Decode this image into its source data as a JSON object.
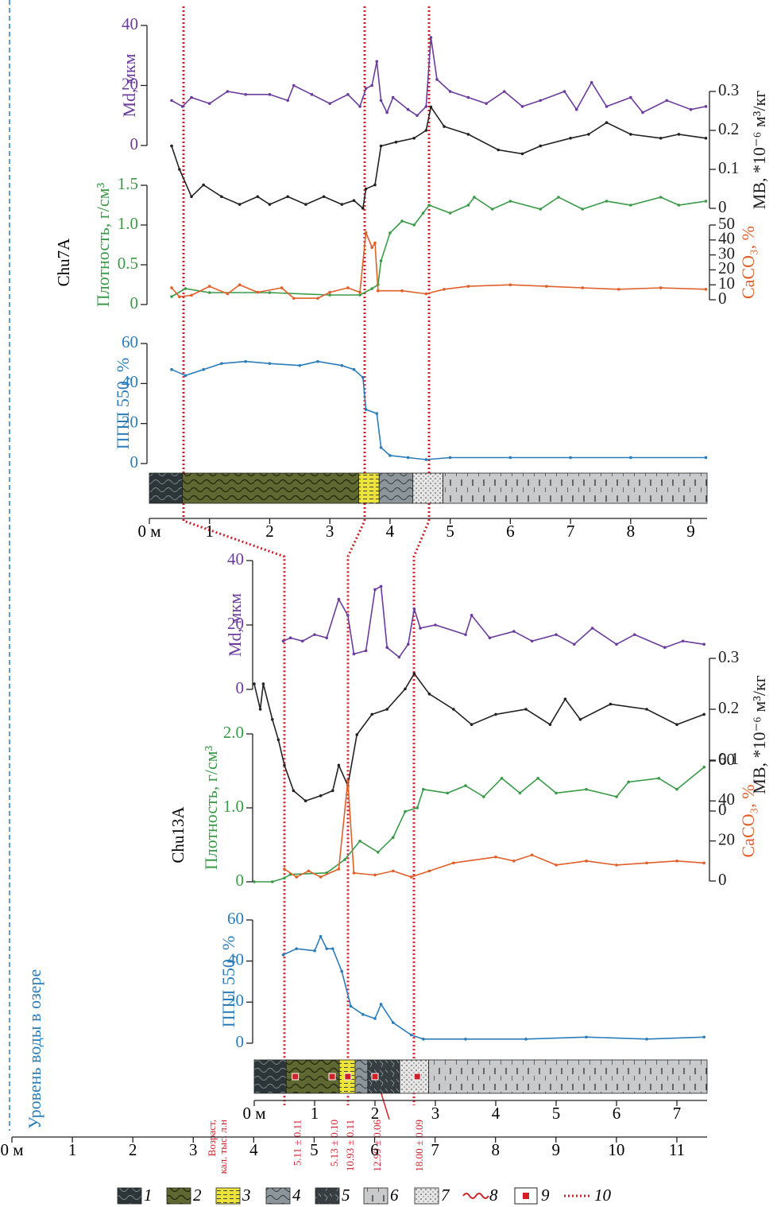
{
  "chart_data": [
    {
      "type": "line",
      "title": "Chu7A",
      "xlim": [
        0,
        9.27
      ],
      "xticks": [
        {
          "value": 0,
          "label": "0 м"
        },
        1,
        2,
        3,
        4,
        5,
        6,
        7,
        8,
        9
      ],
      "lithology": [
        {
          "from": 0,
          "to": 0.55,
          "unit": 1
        },
        {
          "from": 0.55,
          "to": 3.48,
          "unit": 2
        },
        {
          "from": 3.48,
          "to": 3.82,
          "unit": 3
        },
        {
          "from": 3.82,
          "to": 4.38,
          "unit": 4
        },
        {
          "from": 4.38,
          "to": 4.88,
          "unit": 7
        },
        {
          "from": 4.88,
          "to": 9.27,
          "unit": 6
        }
      ],
      "series": [
        {
          "name": "Md, мкм",
          "color": "#6a3c9c",
          "side": "left",
          "ylim": [
            0,
            40
          ],
          "yticks": [
            0,
            20,
            40
          ],
          "x": [
            0.37,
            0.55,
            0.7,
            1.0,
            1.3,
            1.6,
            2.0,
            2.3,
            2.4,
            2.7,
            3.0,
            3.3,
            3.5,
            3.6,
            3.7,
            3.78,
            3.85,
            3.95,
            4.05,
            4.3,
            4.45,
            4.6,
            4.68,
            4.78,
            5.0,
            5.3,
            5.6,
            5.9,
            6.2,
            6.5,
            6.9,
            7.1,
            7.35,
            7.6,
            8.0,
            8.2,
            8.6,
            9.0,
            9.25
          ],
          "values": [
            15,
            13,
            16,
            14,
            18,
            17,
            17,
            15,
            20,
            17,
            14,
            17,
            13,
            19,
            20,
            28,
            15,
            11,
            16,
            12,
            10,
            13,
            36,
            22,
            18,
            16,
            14,
            18,
            13,
            15,
            18,
            12,
            21,
            13,
            16,
            11,
            15,
            12,
            13
          ]
        },
        {
          "name": "MB, *10⁻⁶ м³/кг",
          "color": "#222222",
          "side": "right",
          "ylim": [
            0,
            0.3
          ],
          "yticks": [
            0,
            0.1,
            0.2,
            0.3
          ],
          "x": [
            0.37,
            0.5,
            0.7,
            0.9,
            1.2,
            1.5,
            1.8,
            2.0,
            2.3,
            2.6,
            2.9,
            3.2,
            3.4,
            3.55,
            3.6,
            3.75,
            3.85,
            4.1,
            4.4,
            4.6,
            4.68,
            4.9,
            5.3,
            5.8,
            6.2,
            6.5,
            7.0,
            7.3,
            7.6,
            8.0,
            8.5,
            8.8,
            9.25
          ],
          "values": [
            0.16,
            0.1,
            0.03,
            0.06,
            0.03,
            0.01,
            0.03,
            0.01,
            0.03,
            0.01,
            0.03,
            0.01,
            0.02,
            0,
            0.05,
            0.06,
            0.16,
            0.17,
            0.18,
            0.2,
            0.26,
            0.21,
            0.19,
            0.15,
            0.14,
            0.16,
            0.18,
            0.19,
            0.22,
            0.19,
            0.18,
            0.19,
            0.18
          ]
        },
        {
          "name": "Плотность, г/см³",
          "color": "#3a9a48",
          "side": "left",
          "ylim": [
            0,
            1.5
          ],
          "yticks": [
            0,
            0.5,
            {
              "value": 1,
              "label": "1.0"
            },
            1.5
          ],
          "x": [
            0.37,
            0.6,
            1.0,
            2.0,
            3.0,
            3.5,
            3.7,
            3.8,
            3.85,
            4.0,
            4.2,
            4.4,
            4.55,
            4.65,
            5.0,
            5.3,
            5.4,
            5.7,
            6.0,
            6.5,
            6.8,
            7.2,
            7.6,
            8.0,
            8.5,
            8.8,
            9.25
          ],
          "values": [
            0.1,
            0.2,
            0.15,
            0.15,
            0.12,
            0.12,
            0.2,
            0.25,
            0.55,
            0.9,
            1.05,
            1.0,
            1.15,
            1.25,
            1.15,
            1.25,
            1.35,
            1.2,
            1.3,
            1.2,
            1.35,
            1.2,
            1.3,
            1.25,
            1.35,
            1.25,
            1.3
          ]
        },
        {
          "name": "CaCO₃, %",
          "color": "#e0602a",
          "side": "right",
          "ylim": [
            0,
            50
          ],
          "yticks": [
            0,
            10,
            20,
            30,
            40,
            50
          ],
          "x": [
            0.37,
            0.5,
            0.7,
            1.0,
            1.3,
            1.5,
            1.8,
            2.2,
            2.4,
            2.8,
            3.0,
            3.3,
            3.5,
            3.6,
            3.7,
            3.75,
            3.8,
            4.2,
            4.6,
            4.9,
            5.3,
            6.0,
            6.6,
            7.2,
            7.8,
            8.5,
            9.25
          ],
          "values": [
            8,
            2,
            3,
            9,
            4,
            10,
            5,
            8,
            1,
            1,
            5,
            8,
            5,
            45,
            35,
            38,
            6,
            6,
            4,
            7,
            9,
            10,
            9,
            8,
            7,
            8,
            7
          ]
        },
        {
          "name": "ППП 550, %",
          "color": "#2a7dba",
          "side": "left",
          "ylim": [
            0,
            60
          ],
          "yticks": [
            0,
            20,
            40,
            60
          ],
          "x": [
            0.37,
            0.6,
            0.9,
            1.2,
            1.6,
            2.0,
            2.5,
            2.8,
            3.2,
            3.4,
            3.55,
            3.6,
            3.78,
            3.85,
            4.0,
            4.3,
            4.6,
            5.0,
            6.0,
            7.0,
            8.0,
            9.25
          ],
          "values": [
            47,
            44,
            47,
            50,
            51,
            50,
            49,
            51,
            49,
            47,
            43,
            27,
            25,
            8,
            4,
            3,
            2,
            3,
            3,
            3,
            3,
            3
          ]
        }
      ]
    },
    {
      "type": "line",
      "title": "Chu13A",
      "xlim": [
        0,
        7.5
      ],
      "xticks": [
        {
          "value": 0,
          "label": "0 м"
        },
        1,
        2,
        3,
        4,
        5,
        6,
        7
      ],
      "lithology": [
        {
          "from": 0,
          "to": 0.53,
          "unit": 1
        },
        {
          "from": 0.53,
          "to": 1.41,
          "unit": 2
        },
        {
          "from": 1.41,
          "to": 1.67,
          "unit": 3
        },
        {
          "from": 1.67,
          "to": 1.88,
          "unit": 4
        },
        {
          "from": 1.88,
          "to": 2.41,
          "unit": 5
        },
        {
          "from": 2.41,
          "to": 2.89,
          "unit": 7
        },
        {
          "from": 2.89,
          "to": 7.5,
          "unit": 6
        }
      ],
      "age_title": [
        "Возраст,",
        "кал. тыс. л.н"
      ],
      "samples": [
        {
          "depth": 0.68,
          "label": "5.11 ± 0.11"
        },
        {
          "depth": 1.29,
          "label": "5.13 ± 0.10"
        },
        {
          "depth": 1.55,
          "label": "10.93 ± 0.11"
        },
        {
          "depth": 2.0,
          "label": "12.99 ± 0.06"
        },
        {
          "depth": 2.7,
          "label": "18.00 ± 0.09"
        }
      ],
      "series": [
        {
          "name": "Md, мкм",
          "color": "#6a3c9c",
          "side": "left",
          "ylim": [
            0,
            40
          ],
          "yticks": [
            0,
            20,
            40
          ],
          "x": [
            0.48,
            0.6,
            0.8,
            1.0,
            1.2,
            1.4,
            1.55,
            1.65,
            1.85,
            2.0,
            2.1,
            2.2,
            2.4,
            2.55,
            2.65,
            2.75,
            3.0,
            3.5,
            3.6,
            3.9,
            4.3,
            4.6,
            5.0,
            5.3,
            5.6,
            6.0,
            6.3,
            6.8,
            7.1,
            7.45
          ],
          "values": [
            15,
            16,
            15,
            17,
            16,
            28,
            23,
            11,
            12,
            31,
            32,
            13,
            10,
            14,
            25,
            19,
            20,
            17,
            23,
            16,
            18,
            15,
            17,
            14,
            19,
            14,
            17,
            13,
            15,
            14
          ]
        },
        {
          "name": "MB, *10⁻⁶ м³/кг",
          "color": "#222222",
          "side": "right",
          "ylim": [
            0,
            0.3
          ],
          "yticks": [
            0,
            0.1,
            0.2,
            0.3
          ],
          "x": [
            0,
            0.1,
            0.15,
            0.3,
            0.4,
            0.5,
            0.65,
            0.85,
            1.1,
            1.3,
            1.4,
            1.55,
            1.7,
            1.95,
            2.2,
            2.5,
            2.65,
            2.9,
            3.3,
            3.6,
            4.0,
            4.5,
            4.9,
            5.15,
            5.4,
            5.9,
            6.5,
            7.0,
            7.45
          ],
          "values": [
            0.25,
            0.2,
            0.25,
            0.18,
            0.14,
            0.09,
            0.04,
            0.02,
            0.03,
            0.04,
            0.09,
            0.05,
            0.15,
            0.19,
            0.2,
            0.24,
            0.27,
            0.23,
            0.2,
            0.17,
            0.19,
            0.2,
            0.17,
            0.22,
            0.18,
            0.21,
            0.2,
            0.17,
            0.19
          ]
        },
        {
          "name": "Плотность, г/см³",
          "color": "#3a9a48",
          "side": "left",
          "ylim": [
            0,
            2
          ],
          "yticks": [
            0,
            {
              "value": 1,
              "label": "1.0"
            },
            {
              "value": 2,
              "label": "2.0"
            }
          ],
          "x": [
            0,
            0.3,
            0.5,
            0.6,
            1.2,
            1.5,
            1.75,
            2.05,
            2.3,
            2.5,
            2.7,
            2.8,
            3.2,
            3.5,
            3.8,
            4.1,
            4.4,
            4.7,
            5.0,
            5.5,
            6.0,
            6.2,
            6.7,
            7.0,
            7.45
          ],
          "values": [
            0,
            0,
            0.05,
            0.1,
            0.12,
            0.3,
            0.55,
            0.4,
            0.6,
            0.95,
            1.0,
            1.25,
            1.2,
            1.3,
            1.15,
            1.4,
            1.2,
            1.4,
            1.2,
            1.25,
            1.15,
            1.35,
            1.4,
            1.25,
            1.55
          ]
        },
        {
          "name": "CaCO₃, %",
          "color": "#e0602a",
          "side": "right",
          "ylim": [
            0,
            60
          ],
          "yticks": [
            0,
            20,
            40,
            60
          ],
          "x": [
            0.5,
            0.7,
            0.9,
            1.1,
            1.4,
            1.55,
            1.65,
            2.0,
            2.3,
            2.6,
            2.9,
            3.3,
            4.0,
            4.3,
            4.6,
            5.0,
            5.5,
            6.0,
            6.5,
            7.0,
            7.45
          ],
          "values": [
            6,
            2,
            5,
            2,
            6,
            50,
            4,
            3,
            5,
            2,
            5,
            9,
            12,
            10,
            13,
            8,
            10,
            8,
            9,
            10,
            9
          ]
        },
        {
          "name": "ППП 550, %",
          "color": "#2a7dba",
          "side": "left",
          "ylim": [
            0,
            60
          ],
          "yticks": [
            0,
            20,
            40,
            60
          ],
          "x": [
            0.48,
            0.7,
            1.0,
            1.1,
            1.2,
            1.3,
            1.45,
            1.6,
            1.8,
            2.0,
            2.1,
            2.3,
            2.6,
            2.8,
            3.5,
            4.5,
            5.5,
            6.5,
            7.45
          ],
          "values": [
            43,
            46,
            45,
            52,
            46,
            46,
            35,
            18,
            14,
            12,
            19,
            10,
            4,
            2,
            2,
            2,
            3,
            2,
            3
          ]
        }
      ]
    }
  ],
  "depth_axis": {
    "label": "Уровень воды в озере",
    "xlim": [
      0,
      11.5
    ],
    "xticks": [
      {
        "value": 0,
        "label": "0 м"
      },
      1,
      2,
      3,
      4,
      5,
      6,
      7,
      8,
      9,
      10,
      11
    ]
  },
  "legend": {
    "items": [
      {
        "label": "1"
      },
      {
        "label": "2"
      },
      {
        "label": "3"
      },
      {
        "label": "4"
      },
      {
        "label": "5"
      },
      {
        "label": "6"
      },
      {
        "label": "7"
      },
      {
        "label": "8"
      },
      {
        "label": "9"
      },
      {
        "label": "10"
      }
    ]
  }
}
